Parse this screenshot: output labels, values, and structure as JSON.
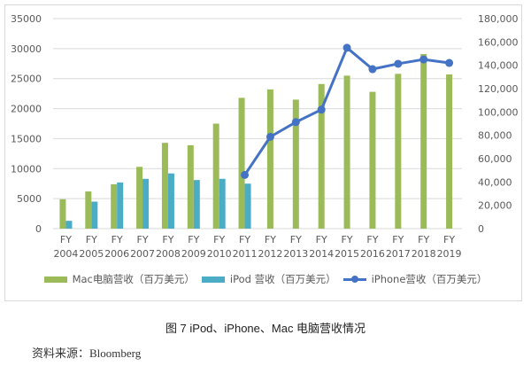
{
  "chart_data": {
    "type": "bar",
    "title": "图 7 iPod、iPhone、Mac 电脑营收情况",
    "xlabel": "",
    "ylabel": "",
    "categories": [
      "FY 2004",
      "FY 2005",
      "FY 2006",
      "FY 2007",
      "FY 2008",
      "FY 2009",
      "FY 2010",
      "FY 2011",
      "FY 2012",
      "FY 2013",
      "FY 2014",
      "FY 2015",
      "FY 2016",
      "FY 2017",
      "FY 2018",
      "FY 2019"
    ],
    "category_lines": [
      [
        "FY",
        "2004"
      ],
      [
        "FY",
        "2005"
      ],
      [
        "FY",
        "2006"
      ],
      [
        "FY",
        "2007"
      ],
      [
        "FY",
        "2008"
      ],
      [
        "FY",
        "2009"
      ],
      [
        "FY",
        "2010"
      ],
      [
        "FY",
        "2011"
      ],
      [
        "FY",
        "2012"
      ],
      [
        "FY",
        "2013"
      ],
      [
        "FY",
        "2014"
      ],
      [
        "FY",
        "2015"
      ],
      [
        "FY",
        "2016"
      ],
      [
        "FY",
        "2017"
      ],
      [
        "FY",
        "2018"
      ],
      [
        "FY",
        "2019"
      ]
    ],
    "series": [
      {
        "name": "Mac电脑营收（百万美元）",
        "type": "bar",
        "axis": "left",
        "color": "#9bbb59",
        "values": [
          4900,
          6200,
          7400,
          10300,
          14300,
          13900,
          17500,
          21800,
          23200,
          21500,
          24100,
          25500,
          22800,
          25800,
          29100,
          25700
        ]
      },
      {
        "name": "iPod 营收（百万美元）",
        "type": "bar",
        "axis": "left",
        "color": "#4bacc6",
        "values": [
          1300,
          4500,
          7700,
          8300,
          9200,
          8100,
          8300,
          7500,
          null,
          null,
          null,
          null,
          null,
          null,
          null,
          null
        ]
      },
      {
        "name": "iPhone营收（百万美元）",
        "type": "line",
        "axis": "right",
        "color": "#4472c4",
        "values": [
          null,
          null,
          null,
          null,
          null,
          null,
          null,
          46000,
          78700,
          91300,
          102000,
          155000,
          136700,
          141300,
          145000,
          142000
        ]
      }
    ],
    "left_axis": {
      "ylim": [
        0,
        35000
      ],
      "ticks": [
        "0",
        "5000",
        "10000",
        "15000",
        "20000",
        "25000",
        "30000",
        "35000"
      ]
    },
    "right_axis": {
      "ylim": [
        0,
        180000
      ],
      "ticks": [
        "0",
        "20,000",
        "40,000",
        "60,000",
        "80,000",
        "100,000",
        "120,000",
        "140,000",
        "160,000",
        "180,000"
      ]
    },
    "grid": true,
    "legend_position": "bottom"
  },
  "legend": {
    "mac": "Mac电脑营收（百万美元）",
    "ipod": "iPod 营收（百万美元）",
    "iphone": "iPhone营收（百万美元）"
  },
  "caption": "图  7 iPod、iPhone、Mac 电脑营收情况",
  "source": "资料来源：Bloomberg"
}
